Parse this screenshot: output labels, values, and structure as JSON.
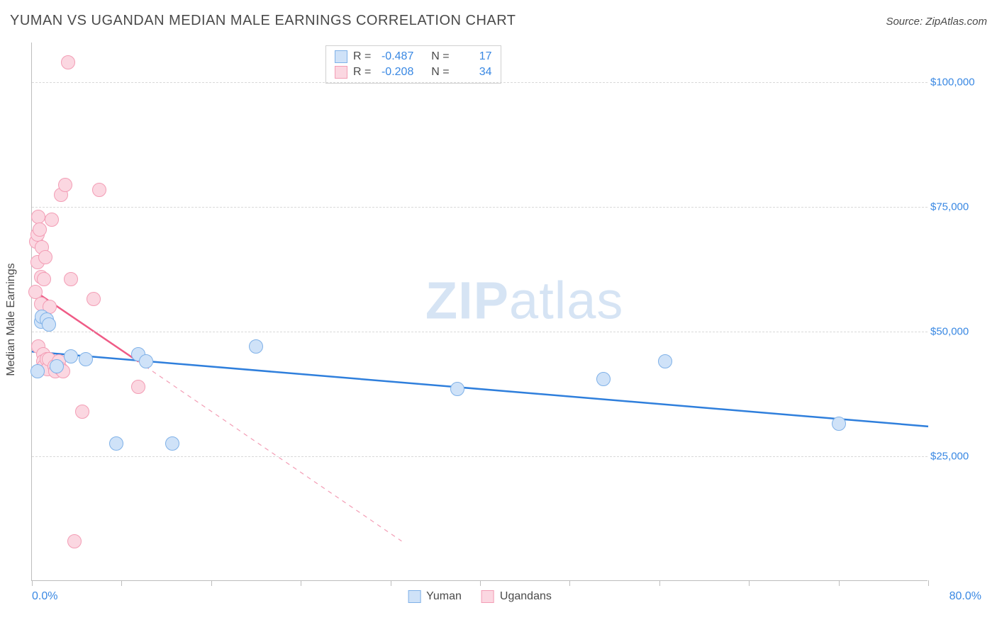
{
  "header": {
    "title": "YUMAN VS UGANDAN MEDIAN MALE EARNINGS CORRELATION CHART",
    "source": "Source: ZipAtlas.com"
  },
  "chart": {
    "type": "scatter",
    "ylabel": "Median Male Earnings",
    "watermark_zip": "ZIP",
    "watermark_atlas": "atlas",
    "background_color": "#ffffff",
    "grid_color": "#d9d9d9",
    "axis_color": "#bdbdbd",
    "text_color": "#4a4a4a",
    "value_color": "#3988e3",
    "xlim": [
      0,
      80
    ],
    "ylim": [
      0,
      108000
    ],
    "x_axis": {
      "min_label": "0.0%",
      "max_label": "80.0%",
      "tick_positions": [
        0,
        8,
        16,
        24,
        32,
        40,
        48,
        56,
        64,
        72,
        80
      ]
    },
    "y_axis": {
      "ticks": [
        {
          "v": 25000,
          "label": "$25,000"
        },
        {
          "v": 50000,
          "label": "$50,000"
        },
        {
          "v": 75000,
          "label": "$75,000"
        },
        {
          "v": 100000,
          "label": "$100,000"
        }
      ]
    },
    "marker_radius": 10,
    "marker_stroke_width": 1.5,
    "series": [
      {
        "name": "Yuman",
        "fill": "#cfe2f8",
        "stroke": "#7fb1e8",
        "line_color": "#2f7fdc",
        "line_width": 2.5,
        "R_label": "R =",
        "R_value": "-0.487",
        "N_label": "N =",
        "N_value": "17",
        "trend": {
          "x1": 0,
          "y1": 46000,
          "x2": 80,
          "y2": 31000,
          "dash": false
        },
        "points": [
          {
            "x": 0.5,
            "y": 42000
          },
          {
            "x": 0.8,
            "y": 52000
          },
          {
            "x": 0.9,
            "y": 53000
          },
          {
            "x": 1.3,
            "y": 52500
          },
          {
            "x": 1.5,
            "y": 51500
          },
          {
            "x": 2.2,
            "y": 43000
          },
          {
            "x": 3.5,
            "y": 45000
          },
          {
            "x": 4.8,
            "y": 44500
          },
          {
            "x": 7.5,
            "y": 27500
          },
          {
            "x": 9.5,
            "y": 45500
          },
          {
            "x": 10.2,
            "y": 44000
          },
          {
            "x": 12.5,
            "y": 27500
          },
          {
            "x": 20.0,
            "y": 47000
          },
          {
            "x": 38.0,
            "y": 38500
          },
          {
            "x": 51.0,
            "y": 40500
          },
          {
            "x": 56.5,
            "y": 44000
          },
          {
            "x": 72.0,
            "y": 31500
          }
        ]
      },
      {
        "name": "Ugandans",
        "fill": "#fbd7e1",
        "stroke": "#f39db5",
        "line_color": "#ef5b86",
        "line_width": 2.5,
        "R_label": "R =",
        "R_value": "-0.208",
        "N_label": "N =",
        "N_value": "34",
        "trend": {
          "x1": 0,
          "y1": 58500,
          "x2": 9.5,
          "y2": 44000,
          "dash": false
        },
        "trend_ext": {
          "x1": 9.5,
          "y1": 44000,
          "x2": 33,
          "y2": 8000,
          "dash": true
        },
        "points": [
          {
            "x": 0.3,
            "y": 58000
          },
          {
            "x": 0.4,
            "y": 68000
          },
          {
            "x": 0.5,
            "y": 69500
          },
          {
            "x": 0.5,
            "y": 64000
          },
          {
            "x": 0.6,
            "y": 47000
          },
          {
            "x": 0.6,
            "y": 73000
          },
          {
            "x": 0.7,
            "y": 70500
          },
          {
            "x": 0.8,
            "y": 61000
          },
          {
            "x": 0.8,
            "y": 55500
          },
          {
            "x": 0.9,
            "y": 67000
          },
          {
            "x": 1.0,
            "y": 45500
          },
          {
            "x": 1.0,
            "y": 44000
          },
          {
            "x": 1.1,
            "y": 43000
          },
          {
            "x": 1.1,
            "y": 60500
          },
          {
            "x": 1.2,
            "y": 65000
          },
          {
            "x": 1.3,
            "y": 44500
          },
          {
            "x": 1.4,
            "y": 42500
          },
          {
            "x": 1.5,
            "y": 44500
          },
          {
            "x": 1.6,
            "y": 55000
          },
          {
            "x": 1.8,
            "y": 72500
          },
          {
            "x": 2.0,
            "y": 43000
          },
          {
            "x": 2.1,
            "y": 42000
          },
          {
            "x": 2.4,
            "y": 44000
          },
          {
            "x": 2.6,
            "y": 77500
          },
          {
            "x": 2.6,
            "y": 42500
          },
          {
            "x": 2.8,
            "y": 42000
          },
          {
            "x": 3.0,
            "y": 79500
          },
          {
            "x": 3.2,
            "y": 104000
          },
          {
            "x": 3.5,
            "y": 60500
          },
          {
            "x": 3.8,
            "y": 8000
          },
          {
            "x": 4.5,
            "y": 34000
          },
          {
            "x": 5.5,
            "y": 56500
          },
          {
            "x": 6.0,
            "y": 78500
          },
          {
            "x": 9.5,
            "y": 39000
          }
        ]
      }
    ]
  }
}
